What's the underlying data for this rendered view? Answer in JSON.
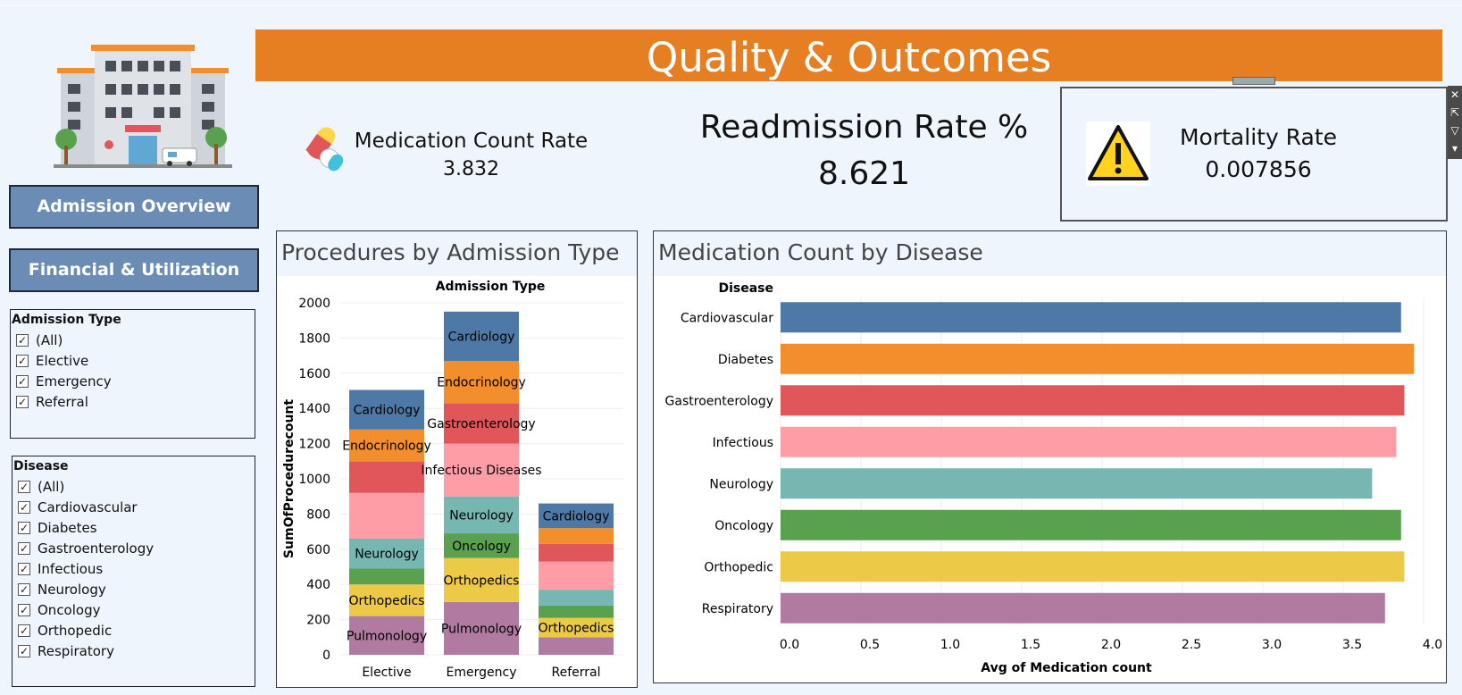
{
  "title": "Quality & Outcomes",
  "nav": {
    "admission_overview": "Admission Overview",
    "financial_utilization": "Financial & Utilization"
  },
  "filters": {
    "admission_type": {
      "title": "Admission Type",
      "items": [
        "(All)",
        "Elective",
        "Emergency",
        "Referral"
      ]
    },
    "disease": {
      "title": "Disease",
      "items": [
        "(All)",
        "Cardiovascular",
        "Diabetes",
        "Gastroenterology",
        "Infectious",
        "Neurology",
        "Oncology",
        "Orthopedic",
        "Respiratory"
      ]
    }
  },
  "kpis": {
    "medication": {
      "label": "Medication Count Rate",
      "value": "3.832"
    },
    "readmission": {
      "label": "Readmission Rate %",
      "value": "8.621"
    },
    "mortality": {
      "label": "Mortality Rate",
      "value": "0.007856"
    }
  },
  "icons": {
    "medication": "pill-capsule-icon",
    "mortality": "warning-triangle-icon",
    "logo": "hospital-icon"
  },
  "colors": {
    "accent": "#e67e22",
    "nav": "#6a8cb5",
    "Cardiology": "#4e79a7",
    "Endocrinology": "#f28e2b",
    "Gastroenterology": "#e15759",
    "Infectious Diseases": "#ff9da7",
    "Neurology": "#76b7b2",
    "Oncology": "#59a14f",
    "Orthopedics": "#edc948",
    "Pulmonology": "#b07aa1"
  },
  "chart_data": [
    {
      "type": "bar",
      "stacked": true,
      "title": "Procedures by Admission Type",
      "header": "Admission Type",
      "ylabel": "SumOfProcedurecount",
      "ylim": [
        0,
        2000
      ],
      "yticks": [
        0,
        200,
        400,
        600,
        800,
        1000,
        1200,
        1400,
        1600,
        1800,
        2000
      ],
      "categories": [
        "Elective",
        "Emergency",
        "Referral"
      ],
      "series": [
        {
          "name": "Pulmonology",
          "values": [
            220,
            300,
            100
          ]
        },
        {
          "name": "Orthopedics",
          "values": [
            180,
            250,
            110
          ]
        },
        {
          "name": "Oncology",
          "values": [
            90,
            140,
            70
          ]
        },
        {
          "name": "Neurology",
          "values": [
            170,
            210,
            90
          ]
        },
        {
          "name": "Infectious Diseases",
          "values": [
            260,
            300,
            160
          ]
        },
        {
          "name": "Gastroenterology",
          "values": [
            180,
            230,
            100
          ]
        },
        {
          "name": "Endocrinology",
          "values": [
            180,
            240,
            90
          ]
        },
        {
          "name": "Cardiology",
          "values": [
            225,
            280,
            140
          ]
        }
      ]
    },
    {
      "type": "bar",
      "orientation": "horizontal",
      "title": "Medication Count by Disease",
      "header": "Disease",
      "xlabel": "Avg of Medication count",
      "xlim": [
        0,
        4
      ],
      "xticks": [
        "0.0",
        "0.5",
        "1.0",
        "1.5",
        "2.0",
        "2.5",
        "3.0",
        "3.5",
        "4.0"
      ],
      "categories": [
        "Cardiovascular",
        "Diabetes",
        "Gastroenterology",
        "Infectious",
        "Neurology",
        "Oncology",
        "Orthopedic",
        "Respiratory"
      ],
      "values": [
        3.86,
        3.94,
        3.88,
        3.83,
        3.68,
        3.86,
        3.88,
        3.76
      ],
      "colors": [
        "#4e79a7",
        "#f28e2b",
        "#e15759",
        "#ff9da7",
        "#76b7b2",
        "#59a14f",
        "#edc948",
        "#b07aa1"
      ]
    }
  ]
}
